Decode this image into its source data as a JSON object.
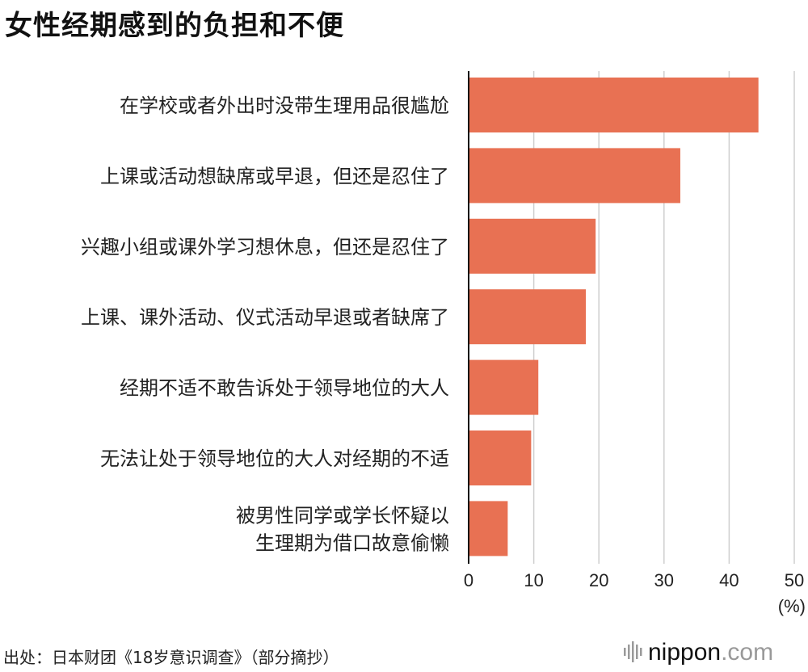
{
  "title": "女性经期感到的负担和不便",
  "source": "出处：日本财团《18岁意识调查》（部分摘抄）",
  "logo": {
    "brand": "nippon",
    "suffix": ".com"
  },
  "colors": {
    "bar": "#e87153",
    "axis": "#111111",
    "grid": "#cfcfcf",
    "text": "#222222"
  },
  "chart_data": {
    "type": "bar",
    "orientation": "horizontal",
    "categories": [
      [
        "在学校或者外出时没带生理用品很尴尬"
      ],
      [
        "上课或活动想缺席或早退，但还是忍住了"
      ],
      [
        "兴趣小组或课外学习想休息，但还是忍住了"
      ],
      [
        "上课、课外活动、仪式活动早退或者缺席了"
      ],
      [
        "经期不适不敢告诉处于领导地位的大人"
      ],
      [
        "无法让处于领导地位的大人对经期的不适"
      ],
      [
        "被男性同学或学长怀疑以",
        "生理期为借口故意偷懒"
      ]
    ],
    "values": [
      44.5,
      32.5,
      19.5,
      18.0,
      10.7,
      9.6,
      6.0
    ],
    "xlim": [
      0,
      50
    ],
    "xticks": [
      "0",
      "10",
      "20",
      "30",
      "40",
      "50"
    ],
    "unit_label": "(%)",
    "grid": true
  }
}
